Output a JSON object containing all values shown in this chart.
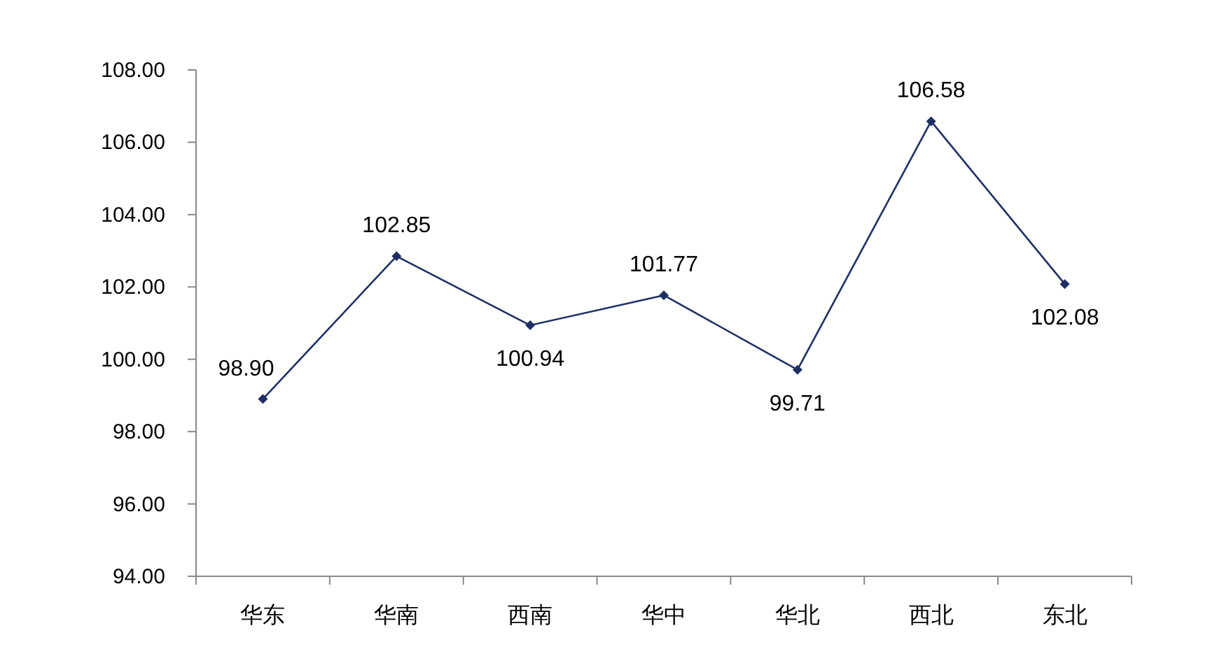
{
  "chart_data": {
    "type": "line",
    "categories": [
      "华东",
      "华南",
      "西南",
      "华中",
      "华北",
      "西北",
      "东北"
    ],
    "series": [
      {
        "color": "#1f2f66",
        "values": [
          98.9,
          102.85,
          100.94,
          101.77,
          99.71,
          106.58,
          102.08
        ],
        "value_labels": [
          "98.90",
          "102.85",
          "100.94",
          "101.77",
          "99.71",
          "106.58",
          "102.08"
        ]
      }
    ],
    "ylim": [
      94,
      108
    ],
    "yticks": [
      {
        "value": 94,
        "label": "94.00"
      },
      {
        "value": 96,
        "label": "96.00"
      },
      {
        "value": 98,
        "label": "98.00"
      },
      {
        "value": 100,
        "label": "100.00"
      },
      {
        "value": 102,
        "label": "102.00"
      },
      {
        "value": 104,
        "label": "104.00"
      },
      {
        "value": 106,
        "label": "106.00"
      },
      {
        "value": 108,
        "label": "108.00"
      }
    ],
    "marker": "diamond",
    "line_style": "solid"
  }
}
